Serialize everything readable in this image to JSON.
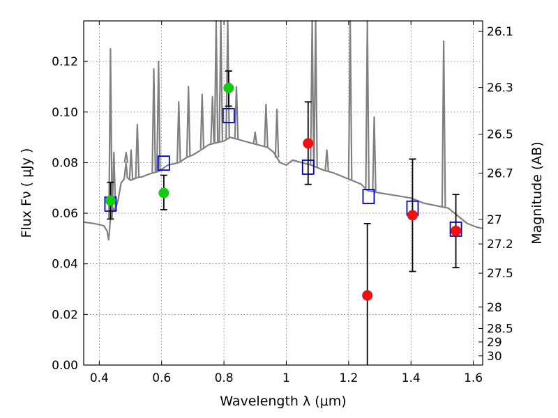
{
  "chart_data": {
    "type": "scatter",
    "title": "",
    "xlabel": "Wavelength  λ (μm)",
    "ylabel": "Flux  Fν  ( μJy )",
    "y2label": "Magnitude (AB)",
    "xlim": [
      0.35,
      1.63
    ],
    "ylim": [
      0,
      0.136
    ],
    "grid": true,
    "xticks": [
      {
        "v": 0.4,
        "label": "0.4"
      },
      {
        "v": 0.6,
        "label": "0.6"
      },
      {
        "v": 0.8,
        "label": "0.8"
      },
      {
        "v": 1.0,
        "label": "1"
      },
      {
        "v": 1.2,
        "label": "1.2"
      },
      {
        "v": 1.4,
        "label": "1.4"
      },
      {
        "v": 1.6,
        "label": "1.6"
      }
    ],
    "yticks": [
      {
        "v": 0.0,
        "label": "0.00"
      },
      {
        "v": 0.02,
        "label": "0.02"
      },
      {
        "v": 0.04,
        "label": "0.04"
      },
      {
        "v": 0.06,
        "label": "0.06"
      },
      {
        "v": 0.08,
        "label": "0.08"
      },
      {
        "v": 0.1,
        "label": "0.10"
      },
      {
        "v": 0.12,
        "label": "0.12"
      }
    ],
    "y2ticks": [
      {
        "v": 26.1,
        "label": "26.1"
      },
      {
        "v": 26.3,
        "label": "26.3"
      },
      {
        "v": 26.5,
        "label": "26.5"
      },
      {
        "v": 26.7,
        "label": "26.7"
      },
      {
        "v": 27.0,
        "label": "27"
      },
      {
        "v": 27.2,
        "label": "27.2"
      },
      {
        "v": 27.5,
        "label": "27.5"
      },
      {
        "v": 28.0,
        "label": "28"
      },
      {
        "v": 28.5,
        "label": "28.5"
      },
      {
        "v": 29.0,
        "label": "29"
      },
      {
        "v": 30.0,
        "label": "30"
      }
    ],
    "series": [
      {
        "type": "line",
        "color": "#808080",
        "points": [
          [
            0.35,
            0.0565
          ],
          [
            0.38,
            0.056
          ],
          [
            0.4,
            0.0555
          ],
          [
            0.415,
            0.055
          ],
          [
            0.425,
            0.053
          ],
          [
            0.43,
            0.0495
          ],
          [
            0.432,
            0.052
          ],
          [
            0.436,
            0.058
          ],
          [
            0.44,
            0.059
          ],
          [
            0.446,
            0.062
          ],
          [
            0.45,
            0.061
          ],
          [
            0.46,
            0.065
          ],
          [
            0.47,
            0.072
          ],
          [
            0.48,
            0.0735
          ],
          [
            0.486,
            0.08
          ],
          [
            0.49,
            0.074
          ],
          [
            0.5,
            0.073
          ],
          [
            0.52,
            0.074
          ],
          [
            0.54,
            0.0745
          ],
          [
            0.56,
            0.0755
          ],
          [
            0.575,
            0.076
          ],
          [
            0.59,
            0.0765
          ],
          [
            0.62,
            0.079
          ],
          [
            0.655,
            0.08
          ],
          [
            0.68,
            0.082
          ],
          [
            0.7,
            0.083
          ],
          [
            0.72,
            0.0845
          ],
          [
            0.75,
            0.087
          ],
          [
            0.78,
            0.088
          ],
          [
            0.8,
            0.0885
          ],
          [
            0.82,
            0.09
          ],
          [
            0.85,
            0.089
          ],
          [
            0.88,
            0.088
          ],
          [
            0.91,
            0.087
          ],
          [
            0.94,
            0.086
          ],
          [
            0.96,
            0.084
          ],
          [
            0.98,
            0.08
          ],
          [
            1.0,
            0.079
          ],
          [
            1.02,
            0.081
          ],
          [
            1.05,
            0.08
          ],
          [
            1.08,
            0.079
          ],
          [
            1.1,
            0.078
          ],
          [
            1.12,
            0.077
          ],
          [
            1.15,
            0.076
          ],
          [
            1.18,
            0.0745
          ],
          [
            1.21,
            0.073
          ],
          [
            1.24,
            0.0715
          ],
          [
            1.26,
            0.069
          ],
          [
            1.3,
            0.068
          ],
          [
            1.35,
            0.067
          ],
          [
            1.4,
            0.066
          ],
          [
            1.44,
            0.064
          ],
          [
            1.48,
            0.063
          ],
          [
            1.5,
            0.0625
          ],
          [
            1.52,
            0.062
          ],
          [
            1.54,
            0.06
          ],
          [
            1.58,
            0.056
          ],
          [
            1.61,
            0.0545
          ],
          [
            1.63,
            0.054
          ]
        ],
        "lines": [
          {
            "x": 0.436,
            "y": 0.125
          },
          {
            "x": 0.447,
            "y": 0.084
          },
          {
            "x": 0.486,
            "y": 0.084
          },
          {
            "x": 0.502,
            "y": 0.085
          },
          {
            "x": 0.522,
            "y": 0.095
          },
          {
            "x": 0.575,
            "y": 0.117
          },
          {
            "x": 0.59,
            "y": 0.12
          },
          {
            "x": 0.655,
            "y": 0.104
          },
          {
            "x": 0.686,
            "y": 0.11
          },
          {
            "x": 0.73,
            "y": 0.107
          },
          {
            "x": 0.763,
            "y": 0.106
          },
          {
            "x": 0.775,
            "y": 0.138
          },
          {
            "x": 0.79,
            "y": 0.138
          },
          {
            "x": 0.812,
            "y": 0.138
          },
          {
            "x": 0.84,
            "y": 0.11
          },
          {
            "x": 0.9,
            "y": 0.092
          },
          {
            "x": 0.935,
            "y": 0.103
          },
          {
            "x": 0.97,
            "y": 0.101
          },
          {
            "x": 1.083,
            "y": 0.138
          },
          {
            "x": 1.094,
            "y": 0.138
          },
          {
            "x": 1.13,
            "y": 0.085
          },
          {
            "x": 1.205,
            "y": 0.138
          },
          {
            "x": 1.26,
            "y": 0.138
          },
          {
            "x": 1.282,
            "y": 0.098
          },
          {
            "x": 1.505,
            "y": 0.128
          }
        ]
      }
    ],
    "model_boxes": {
      "color": "#0000cc",
      "points": [
        {
          "x": 0.436,
          "y": 0.0636
        },
        {
          "x": 0.607,
          "y": 0.0798
        },
        {
          "x": 0.815,
          "y": 0.0986
        },
        {
          "x": 1.07,
          "y": 0.0782
        },
        {
          "x": 1.264,
          "y": 0.0666
        },
        {
          "x": 1.405,
          "y": 0.062
        },
        {
          "x": 1.544,
          "y": 0.0537
        }
      ]
    },
    "observations": [
      {
        "x": 0.436,
        "y": 0.065,
        "err_lo": 0.0577,
        "err_hi": 0.0722,
        "color": "#11cc11"
      },
      {
        "x": 0.607,
        "y": 0.068,
        "err_lo": 0.0614,
        "err_hi": 0.075,
        "color": "#11cc11"
      },
      {
        "x": 0.815,
        "y": 0.1095,
        "err_lo": 0.1023,
        "err_hi": 0.1162,
        "color": "#11cc11"
      },
      {
        "x": 1.07,
        "y": 0.0876,
        "err_lo": 0.0714,
        "err_hi": 0.104,
        "color": "#ee1111"
      },
      {
        "x": 1.26,
        "y": 0.0275,
        "err_lo": 0.0,
        "err_hi": 0.0559,
        "color": "#ee1111"
      },
      {
        "x": 1.405,
        "y": 0.0592,
        "err_lo": 0.037,
        "err_hi": 0.0814,
        "color": "#ee1111"
      },
      {
        "x": 1.544,
        "y": 0.053,
        "err_lo": 0.0385,
        "err_hi": 0.0674,
        "color": "#ee1111"
      }
    ]
  }
}
